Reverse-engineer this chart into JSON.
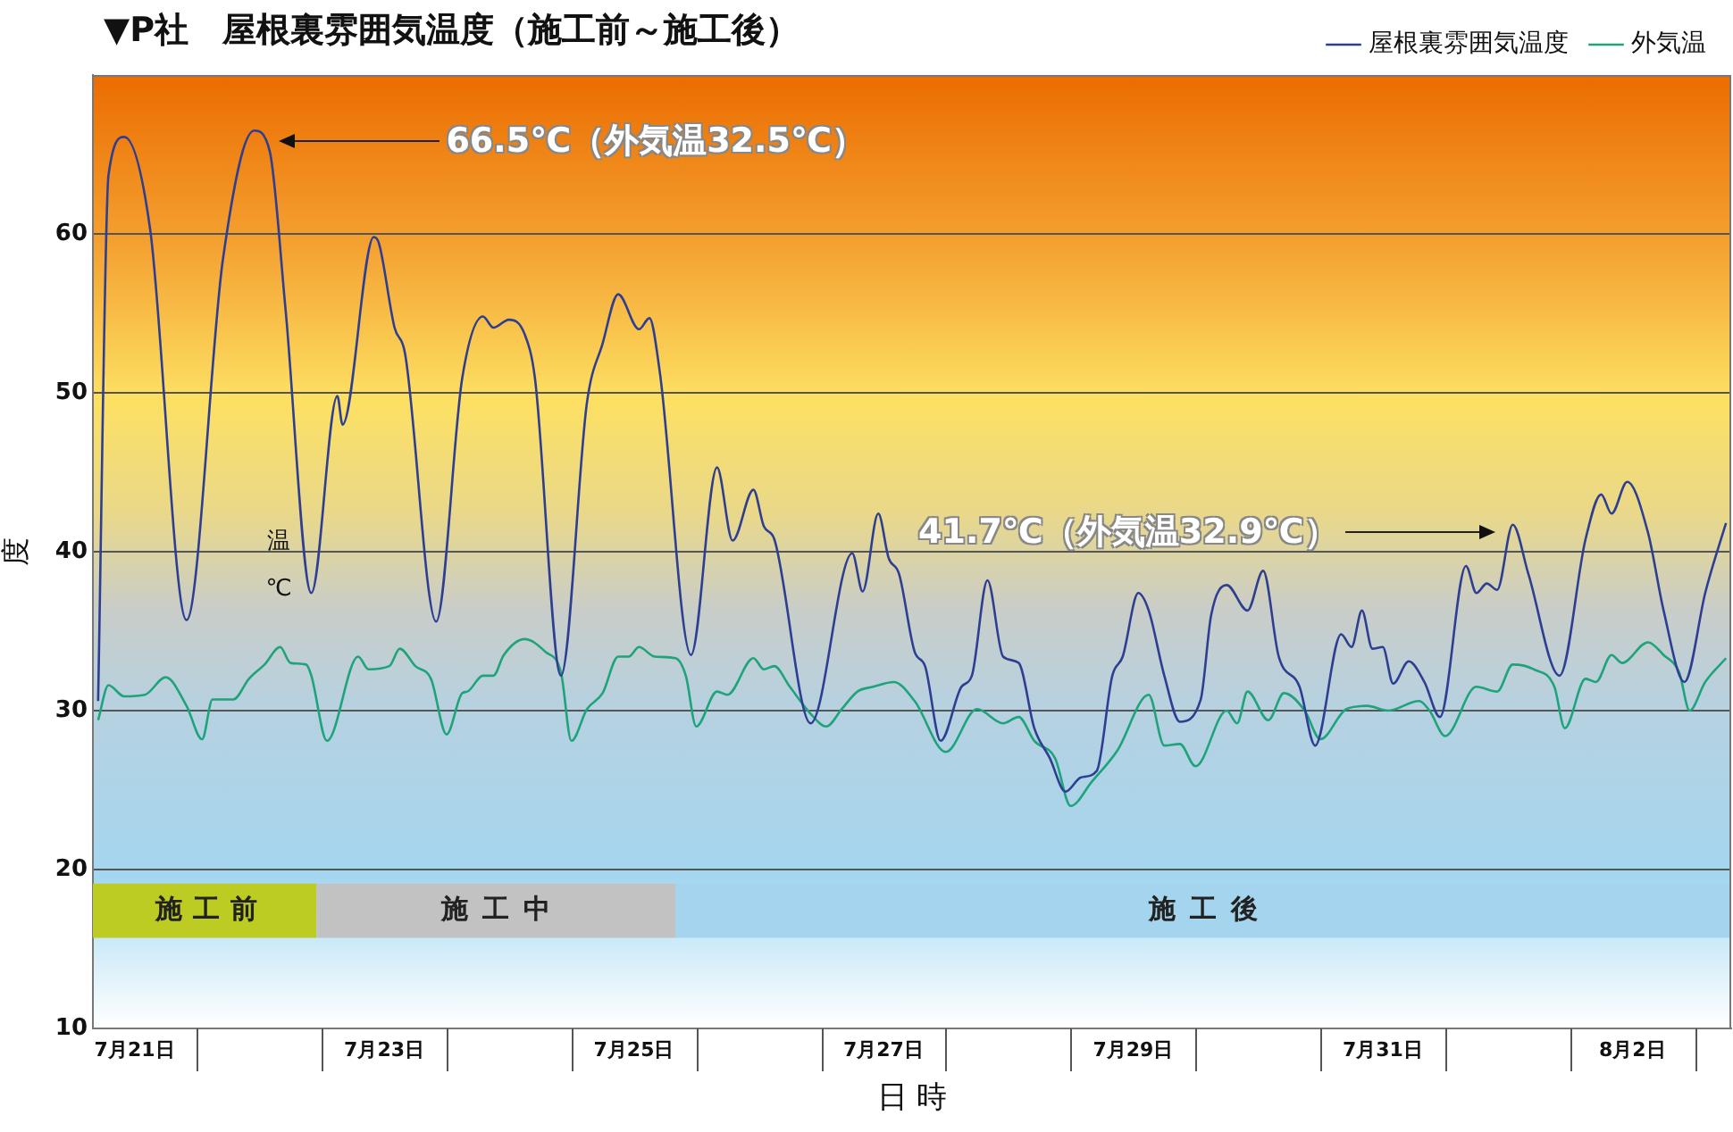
{
  "chart_data": {
    "type": "line",
    "title": "▼P社　屋根裏雰囲気温度（施工前～施工後）",
    "xlabel": "日 時",
    "ylabel": "度",
    "xlim": [
      "--07-21T04:00",
      "--08-03T07:00"
    ],
    "ylim": [
      10,
      70
    ],
    "yticks": [
      10,
      20,
      30,
      40,
      50,
      60
    ],
    "xticks": [
      {
        "value": "--07-21T12:00",
        "label": "7月21日"
      },
      {
        "value": "--07-23T12:00",
        "label": "7月23日"
      },
      {
        "value": "--07-25T12:00",
        "label": "7月25日"
      },
      {
        "value": "--07-27T12:00",
        "label": "7月27日"
      },
      {
        "value": "--07-29T12:00",
        "label": "7月29日"
      },
      {
        "value": "--07-31T12:00",
        "label": "7月31日"
      },
      {
        "value": "--08-02T12:00",
        "label": "8月2日"
      }
    ],
    "grid": "y",
    "legend": "top right",
    "marker": "none",
    "line_style": "solid",
    "series": [
      {
        "name": "屋根裏雰囲気温度",
        "color": "#2e3f91",
        "x": [
          "--07-21T05:00",
          "--07-21T07:00",
          "--07-21T10:00",
          "--07-21T15:00",
          "--07-21T22:00",
          "--07-22T05:00",
          "--07-22T11:00",
          "--07-22T14:00",
          "--07-22T17:00",
          "--07-22T22:00",
          "--07-23T03:00",
          "--07-23T04:00",
          "--07-23T10:00",
          "--07-23T11:00",
          "--07-23T14:00",
          "--07-23T16:00",
          "--07-23T22:00",
          "--07-24T03:00",
          "--07-24T07:00",
          "--07-24T09:00",
          "--07-24T12:00",
          "--07-24T15:00",
          "--07-24T17:00",
          "--07-24T22:00",
          "--07-25T03:00",
          "--07-25T06:00",
          "--07-25T09:00",
          "--07-25T13:00",
          "--07-25T15:00",
          "--07-25T17:00",
          "--07-25T23:00",
          "--07-26T04:00",
          "--07-26T07:00",
          "--07-26T11:00",
          "--07-26T13:00",
          "--07-26T15:00",
          "--07-26T22:00",
          "--07-27T06:00",
          "--07-27T08:00",
          "--07-27T11:00",
          "--07-27T13:00",
          "--07-27T15:00",
          "--07-27T18:00",
          "--07-27T20:00",
          "--07-27T23:00",
          "--07-28T03:00",
          "--07-28T05:00",
          "--07-28T08:00",
          "--07-28T11:00",
          "--07-28T14:00",
          "--07-28T17:00",
          "--07-28T20:00",
          "--07-28T23:00",
          "--07-29T02:00",
          "--07-29T05:00",
          "--07-29T08:00",
          "--07-29T10:00",
          "--07-29T13:00",
          "--07-29T15:00",
          "--07-29T18:00",
          "--07-29T21:00",
          "--07-30T01:00",
          "--07-30T03:00",
          "--07-30T06:00",
          "--07-30T10:00",
          "--07-30T13:00",
          "--07-30T16:00",
          "--07-30T20:00",
          "--07-30T23:00",
          "--07-31T04:00",
          "--07-31T06:00",
          "--07-31T08:00",
          "--07-31T10:00",
          "--07-31T12:00",
          "--07-31T14:00",
          "--07-31T17:00",
          "--07-31T20:00",
          "--07-31T23:00",
          "--08-01T04:00",
          "--08-01T06:00",
          "--08-01T08:00",
          "--08-01T10:00",
          "--08-01T13:00",
          "--08-01T16:00",
          "--08-01T22:00",
          "--08-02T03:00",
          "--08-02T06:00",
          "--08-02T08:00",
          "--08-02T11:00",
          "--08-02T15:00",
          "--08-02T18:00",
          "--08-02T22:00",
          "--08-03T02:00",
          "--08-03T03:00",
          "--08-03T06:00"
        ],
        "values": [
          30.6,
          63.7,
          66.1,
          60.3,
          35.7,
          58.4,
          66.5,
          65.2,
          55.4,
          37.4,
          49.8,
          48.0,
          59.8,
          59.4,
          54.1,
          52.5,
          35.6,
          50.9,
          54.8,
          54.1,
          54.6,
          53.7,
          50.9,
          32.2,
          49.4,
          53.1,
          56.2,
          54.0,
          54.7,
          51.3,
          33.5,
          45.3,
          40.7,
          43.9,
          41.6,
          40.8,
          29.2,
          39.9,
          37.5,
          42.4,
          39.6,
          38.6,
          33.7,
          32.8,
          28.1,
          31.5,
          32.2,
          38.2,
          33.4,
          33.0,
          28.9,
          27.0,
          24.9,
          25.8,
          26.2,
          32.2,
          33.4,
          37.4,
          36.3,
          32.2,
          29.3,
          30.7,
          36.0,
          37.9,
          36.3,
          38.8,
          33.4,
          31.5,
          27.8,
          34.8,
          34.0,
          36.3,
          33.9,
          34.0,
          31.7,
          33.1,
          31.8,
          29.6,
          39.1,
          37.4,
          38.0,
          37.6,
          41.7,
          38.6,
          32.2,
          40.8,
          43.6,
          42.4,
          44.4,
          41.2,
          36.3,
          31.8,
          37.4,
          38.6,
          41.8
        ]
      },
      {
        "name": "外気温",
        "color": "#1fa37a",
        "x": [
          "--07-21T05:00",
          "--07-21T07:00",
          "--07-21T10:00",
          "--07-21T14:00",
          "--07-21T18:00",
          "--07-21T22:00",
          "--07-22T01:00",
          "--07-22T03:00",
          "--07-22T07:00",
          "--07-22T10:00",
          "--07-22T13:00",
          "--07-22T16:00",
          "--07-22T18:00",
          "--07-22T21:00",
          "--07-22T22:00",
          "--07-23T01:00",
          "--07-23T07:00",
          "--07-23T09:00",
          "--07-23T13:00",
          "--07-23T15:00",
          "--07-23T18:00",
          "--07-23T21:00",
          "--07-24T00:00",
          "--07-24T03:00",
          "--07-24T04:00",
          "--07-24T07:00",
          "--07-24T09:00",
          "--07-24T11:00",
          "--07-24T15:00",
          "--07-24T19:00",
          "--07-24T22:00",
          "--07-25T00:00",
          "--07-25T03:00",
          "--07-25T06:00",
          "--07-25T09:00",
          "--07-25T11:00",
          "--07-25T13:00",
          "--07-25T16:00",
          "--07-25T20:00",
          "--07-25T22:00",
          "--07-26T00:00",
          "--07-26T04:00",
          "--07-26T06:00",
          "--07-26T11:00",
          "--07-26T13:00",
          "--07-26T15:00",
          "--07-26T18:00",
          "--07-26T22:00",
          "--07-27T01:00",
          "--07-27T04:00",
          "--07-27T07:00",
          "--07-27T10:00",
          "--07-27T14:00",
          "--07-27T18:00",
          "--07-28T00:00",
          "--07-28T06:00",
          "--07-28T11:00",
          "--07-28T14:00",
          "--07-28T17:00",
          "--07-28T21:00",
          "--07-29T00:00",
          "--07-29T04:00",
          "--07-29T09:00",
          "--07-29T15:00",
          "--07-29T18:00",
          "--07-29T21:00",
          "--07-30T00:00",
          "--07-30T06:00",
          "--07-30T08:00",
          "--07-30T10:00",
          "--07-30T14:00",
          "--07-30T17:00",
          "--07-30T21:00",
          "--07-31T00:00",
          "--07-31T05:00",
          "--07-31T09:00",
          "--07-31T13:00",
          "--07-31T19:00",
          "--07-31T21:00",
          "--08-01T00:00",
          "--08-01T06:00",
          "--08-01T10:00",
          "--08-01T13:00",
          "--08-01T17:00",
          "--08-01T21:00",
          "--08-01T23:00",
          "--08-02T03:00",
          "--08-02T05:00",
          "--08-02T08:00",
          "--08-02T10:00",
          "--08-02T15:00",
          "--08-02T18:00",
          "--08-02T21:00",
          "--08-02T23:00",
          "--08-03T02:00",
          "--08-03T06:00"
        ],
        "values": [
          29.4,
          31.6,
          30.9,
          31.0,
          32.1,
          30.3,
          28.2,
          30.7,
          30.7,
          32.0,
          32.9,
          34.0,
          33.0,
          32.9,
          32.2,
          28.1,
          33.4,
          32.6,
          32.8,
          33.9,
          32.8,
          32.0,
          28.5,
          31.1,
          31.2,
          32.2,
          32.2,
          33.5,
          34.5,
          33.7,
          32.4,
          28.1,
          30.1,
          31.1,
          33.4,
          33.4,
          34.0,
          33.4,
          33.3,
          32.2,
          29.0,
          31.2,
          31.0,
          33.3,
          32.6,
          32.8,
          31.5,
          29.8,
          29.0,
          30.1,
          31.2,
          31.5,
          31.8,
          30.6,
          27.4,
          30.1,
          29.2,
          29.6,
          28.1,
          27.0,
          24.0,
          25.5,
          27.5,
          31.0,
          27.8,
          27.9,
          26.5,
          30.0,
          29.2,
          31.2,
          29.4,
          31.1,
          30.0,
          28.2,
          30.1,
          30.3,
          30.0,
          30.6,
          30.0,
          28.4,
          31.5,
          31.2,
          32.9,
          32.6,
          31.5,
          28.9,
          32.0,
          31.8,
          33.5,
          33.0,
          34.3,
          33.5,
          32.4,
          30.0,
          31.8,
          33.3
        ]
      }
    ],
    "bands": [
      {
        "axis": "x",
        "from": "--07-21T04:00",
        "to": "--07-22T23:00",
        "label": "施工前",
        "color": "#bccc22"
      },
      {
        "axis": "x",
        "from": "--07-22T23:00",
        "to": "--07-25T20:00",
        "label": "施工中",
        "color": "#c2c2c2"
      },
      {
        "axis": "x",
        "from": "--07-25T20:00",
        "to": "--08-03T07:00",
        "label": "施工後",
        "color": "#a4d4ee"
      }
    ],
    "annotations": [
      "66.5℃（外気温32.5℃）",
      "41.7℃（外気温32.9℃）",
      "温",
      "℃"
    ]
  }
}
